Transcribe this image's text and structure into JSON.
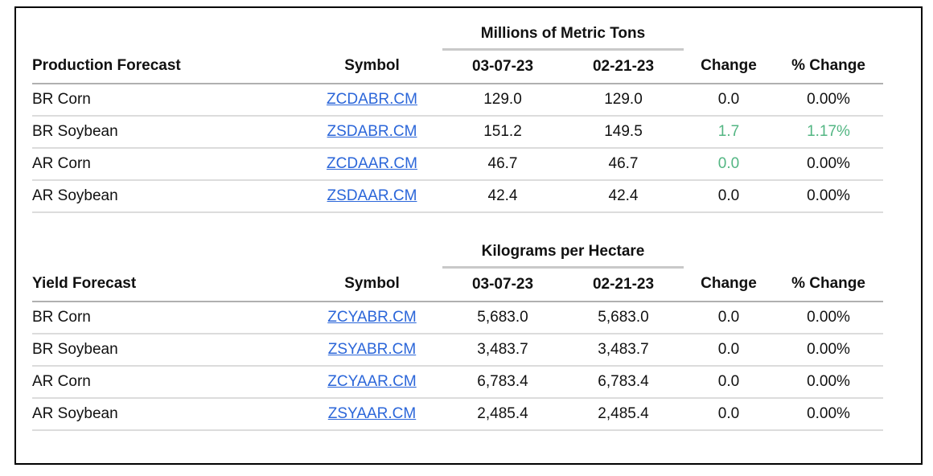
{
  "colors": {
    "link_blue": "#2b66d9",
    "positive_green": "#53b683",
    "positive_style": "color:#53b683"
  },
  "production_table": {
    "section_label": "Production Forecast",
    "unit_header": "Millions of Metric Tons",
    "column_headers": {
      "symbol": "Symbol",
      "date1": "03-07-23",
      "date2": "02-21-23",
      "change": "Change",
      "pct_change": "% Change"
    },
    "rows": [
      {
        "label": "BR Corn",
        "symbol": "ZCDABR.CM",
        "date1": "129.0",
        "date2": "129.0",
        "change": "0.0",
        "pct_change": "0.00%"
      },
      {
        "label": "BR Soybean",
        "symbol": "ZSDABR.CM",
        "date1": "151.2",
        "date2": "149.5",
        "change": "1.7",
        "pct_change": "1.17%"
      },
      {
        "label": "AR Corn",
        "symbol": "ZCDAAR.CM",
        "date1": "46.7",
        "date2": "46.7",
        "change": "0.0",
        "pct_change": "0.00%"
      },
      {
        "label": "AR Soybean",
        "symbol": "ZSDAAR.CM",
        "date1": "42.4",
        "date2": "42.4",
        "change": "0.0",
        "pct_change": "0.00%"
      }
    ]
  },
  "yield_table": {
    "section_label": "Yield Forecast",
    "unit_header": "Kilograms per Hectare",
    "column_headers": {
      "symbol": "Symbol",
      "date1": "03-07-23",
      "date2": "02-21-23",
      "change": "Change",
      "pct_change": "% Change"
    },
    "rows": [
      {
        "label": "BR Corn",
        "symbol": "ZCYABR.CM",
        "date1": "5,683.0",
        "date2": "5,683.0",
        "change": "0.0",
        "pct_change": "0.00%"
      },
      {
        "label": "BR Soybean",
        "symbol": "ZSYABR.CM",
        "date1": "3,483.7",
        "date2": "3,483.7",
        "change": "0.0",
        "pct_change": "0.00%"
      },
      {
        "label": "AR Corn",
        "symbol": "ZCYAAR.CM",
        "date1": "6,783.4",
        "date2": "6,783.4",
        "change": "0.0",
        "pct_change": "0.00%"
      },
      {
        "label": "AR Soybean",
        "symbol": "ZSYAAR.CM",
        "date1": "2,485.4",
        "date2": "2,485.4",
        "change": "0.0",
        "pct_change": "0.00%"
      }
    ]
  }
}
